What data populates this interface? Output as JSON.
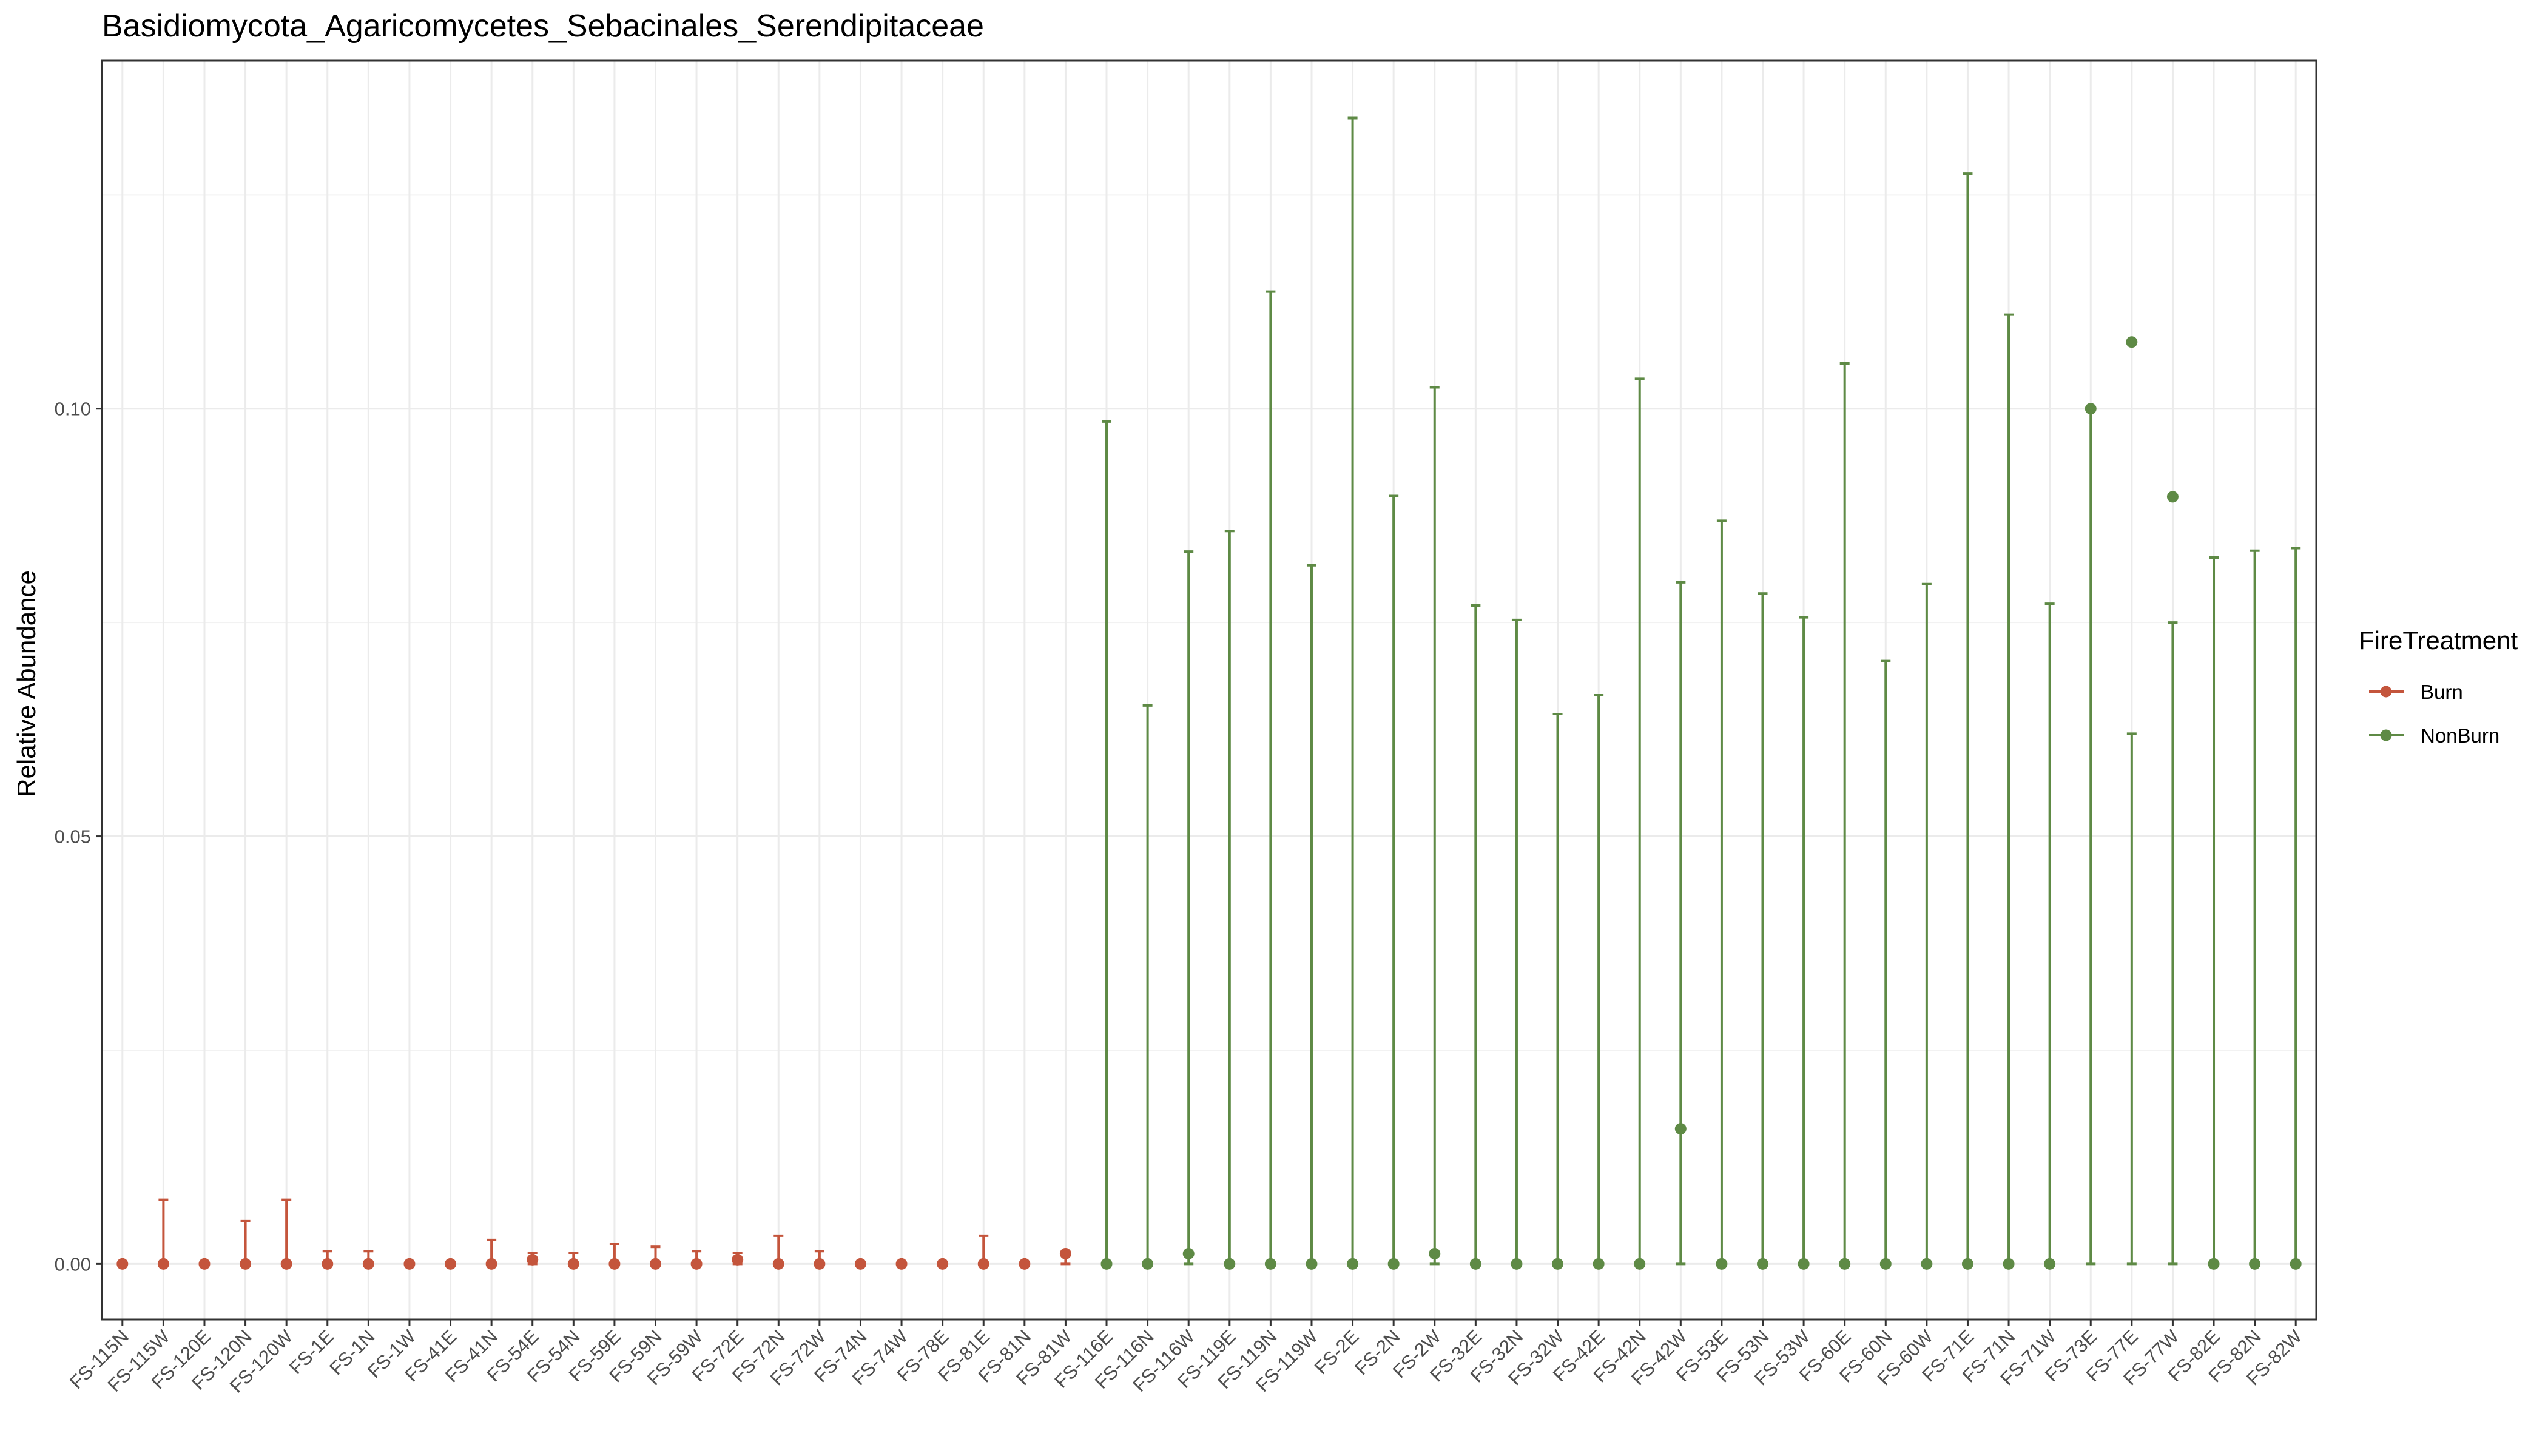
{
  "chart_data": {
    "type": "scatter",
    "title": "Basidiomycota_Agaricomycetes_Sebacinales_Serendipitaceae",
    "xlabel": "",
    "ylabel": "Relative Abundance",
    "ylim": [
      -0.0065,
      0.1407
    ],
    "yticks": [
      0.0,
      0.05,
      0.1
    ],
    "ytick_labels": [
      "0.00",
      "0.05",
      "0.10"
    ],
    "grid": true,
    "legend_position": "right",
    "legend_title": "FireTreatment",
    "series": [
      {
        "name": "Burn",
        "color": "#C4553C"
      },
      {
        "name": "NonBurn",
        "color": "#5E8A45"
      }
    ],
    "categories": [
      "FS-115N",
      "FS-115W",
      "FS-120E",
      "FS-120N",
      "FS-120W",
      "FS-1E",
      "FS-1N",
      "FS-1W",
      "FS-41E",
      "FS-41N",
      "FS-54E",
      "FS-54N",
      "FS-59E",
      "FS-59N",
      "FS-59W",
      "FS-72E",
      "FS-72N",
      "FS-72W",
      "FS-74N",
      "FS-74W",
      "FS-78E",
      "FS-81E",
      "FS-81N",
      "FS-81W",
      "FS-116E",
      "FS-116N",
      "FS-116W",
      "FS-119E",
      "FS-119N",
      "FS-119W",
      "FS-2E",
      "FS-2N",
      "FS-2W",
      "FS-32E",
      "FS-32N",
      "FS-32W",
      "FS-42E",
      "FS-42N",
      "FS-42W",
      "FS-53E",
      "FS-53N",
      "FS-53W",
      "FS-60E",
      "FS-60N",
      "FS-60W",
      "FS-71E",
      "FS-71N",
      "FS-71W",
      "FS-73E",
      "FS-77E",
      "FS-77W",
      "FS-82E",
      "FS-82N",
      "FS-82W"
    ],
    "points": [
      {
        "x": "FS-115N",
        "group": "Burn",
        "y": 0.0,
        "ymin": 0.0,
        "ymax": 0.0
      },
      {
        "x": "FS-115W",
        "group": "Burn",
        "y": 0.0,
        "ymin": 0.0,
        "ymax": 0.0075
      },
      {
        "x": "FS-120E",
        "group": "Burn",
        "y": 0.0,
        "ymin": 0.0,
        "ymax": 0.0
      },
      {
        "x": "FS-120N",
        "group": "Burn",
        "y": 0.0,
        "ymin": 0.0,
        "ymax": 0.005
      },
      {
        "x": "FS-120W",
        "group": "Burn",
        "y": 0.0,
        "ymin": 0.0,
        "ymax": 0.0075
      },
      {
        "x": "FS-1E",
        "group": "Burn",
        "y": 0.0,
        "ymin": 0.0,
        "ymax": 0.0015
      },
      {
        "x": "FS-1N",
        "group": "Burn",
        "y": 0.0,
        "ymin": 0.0,
        "ymax": 0.0015
      },
      {
        "x": "FS-1W",
        "group": "Burn",
        "y": 0.0,
        "ymin": 0.0,
        "ymax": 0.0
      },
      {
        "x": "FS-41E",
        "group": "Burn",
        "y": 0.0,
        "ymin": 0.0,
        "ymax": 0.0
      },
      {
        "x": "FS-41N",
        "group": "Burn",
        "y": 0.0,
        "ymin": 0.0,
        "ymax": 0.0028
      },
      {
        "x": "FS-54E",
        "group": "Burn",
        "y": 0.0005,
        "ymin": 0.0,
        "ymax": 0.0013
      },
      {
        "x": "FS-54N",
        "group": "Burn",
        "y": 0.0,
        "ymin": 0.0,
        "ymax": 0.0013
      },
      {
        "x": "FS-59E",
        "group": "Burn",
        "y": 0.0,
        "ymin": 0.0,
        "ymax": 0.0023
      },
      {
        "x": "FS-59N",
        "group": "Burn",
        "y": 0.0,
        "ymin": 0.0,
        "ymax": 0.002
      },
      {
        "x": "FS-59W",
        "group": "Burn",
        "y": 0.0,
        "ymin": 0.0,
        "ymax": 0.0015
      },
      {
        "x": "FS-72E",
        "group": "Burn",
        "y": 0.0005,
        "ymin": 0.0,
        "ymax": 0.0013
      },
      {
        "x": "FS-72N",
        "group": "Burn",
        "y": 0.0,
        "ymin": 0.0,
        "ymax": 0.0033
      },
      {
        "x": "FS-72W",
        "group": "Burn",
        "y": 0.0,
        "ymin": 0.0,
        "ymax": 0.0015
      },
      {
        "x": "FS-74N",
        "group": "Burn",
        "y": 0.0,
        "ymin": 0.0,
        "ymax": 0.0
      },
      {
        "x": "FS-74W",
        "group": "Burn",
        "y": 0.0,
        "ymin": 0.0,
        "ymax": 0.0
      },
      {
        "x": "FS-78E",
        "group": "Burn",
        "y": 0.0,
        "ymin": 0.0,
        "ymax": 0.0
      },
      {
        "x": "FS-81E",
        "group": "Burn",
        "y": 0.0,
        "ymin": 0.0,
        "ymax": 0.0033
      },
      {
        "x": "FS-81N",
        "group": "Burn",
        "y": 0.0,
        "ymin": 0.0,
        "ymax": 0.0
      },
      {
        "x": "FS-81W",
        "group": "Burn",
        "y": 0.0012,
        "ymin": 0.0,
        "ymax": 0.0015
      },
      {
        "x": "FS-116E",
        "group": "NonBurn",
        "y": 0.0,
        "ymin": 0.0,
        "ymax": 0.0985
      },
      {
        "x": "FS-116N",
        "group": "NonBurn",
        "y": 0.0,
        "ymin": 0.0,
        "ymax": 0.0653
      },
      {
        "x": "FS-116W",
        "group": "NonBurn",
        "y": 0.0012,
        "ymin": 0.0,
        "ymax": 0.0833
      },
      {
        "x": "FS-119E",
        "group": "NonBurn",
        "y": 0.0,
        "ymin": 0.0,
        "ymax": 0.0857
      },
      {
        "x": "FS-119N",
        "group": "NonBurn",
        "y": 0.0,
        "ymin": 0.0,
        "ymax": 0.1137
      },
      {
        "x": "FS-119W",
        "group": "NonBurn",
        "y": 0.0,
        "ymin": 0.0,
        "ymax": 0.0817
      },
      {
        "x": "FS-2E",
        "group": "NonBurn",
        "y": 0.0,
        "ymin": 0.0,
        "ymax": 0.134
      },
      {
        "x": "FS-2N",
        "group": "NonBurn",
        "y": 0.0,
        "ymin": 0.0,
        "ymax": 0.0898
      },
      {
        "x": "FS-2W",
        "group": "NonBurn",
        "y": 0.0012,
        "ymin": 0.0,
        "ymax": 0.1025
      },
      {
        "x": "FS-32E",
        "group": "NonBurn",
        "y": 0.0,
        "ymin": 0.0,
        "ymax": 0.077
      },
      {
        "x": "FS-32N",
        "group": "NonBurn",
        "y": 0.0,
        "ymin": 0.0,
        "ymax": 0.0753
      },
      {
        "x": "FS-32W",
        "group": "NonBurn",
        "y": 0.0,
        "ymin": 0.0,
        "ymax": 0.0643
      },
      {
        "x": "FS-42E",
        "group": "NonBurn",
        "y": 0.0,
        "ymin": 0.0,
        "ymax": 0.0665
      },
      {
        "x": "FS-42N",
        "group": "NonBurn",
        "y": 0.0,
        "ymin": 0.0,
        "ymax": 0.1035
      },
      {
        "x": "FS-42W",
        "group": "NonBurn",
        "y": 0.0158,
        "ymin": 0.0,
        "ymax": 0.0797
      },
      {
        "x": "FS-53E",
        "group": "NonBurn",
        "y": 0.0,
        "ymin": 0.0,
        "ymax": 0.0869
      },
      {
        "x": "FS-53N",
        "group": "NonBurn",
        "y": 0.0,
        "ymin": 0.0,
        "ymax": 0.0784
      },
      {
        "x": "FS-53W",
        "group": "NonBurn",
        "y": 0.0,
        "ymin": 0.0,
        "ymax": 0.0756
      },
      {
        "x": "FS-60E",
        "group": "NonBurn",
        "y": 0.0,
        "ymin": 0.0,
        "ymax": 0.1053
      },
      {
        "x": "FS-60N",
        "group": "NonBurn",
        "y": 0.0,
        "ymin": 0.0,
        "ymax": 0.0705
      },
      {
        "x": "FS-60W",
        "group": "NonBurn",
        "y": 0.0,
        "ymin": 0.0,
        "ymax": 0.0795
      },
      {
        "x": "FS-71E",
        "group": "NonBurn",
        "y": 0.0,
        "ymin": 0.0,
        "ymax": 0.1275
      },
      {
        "x": "FS-71N",
        "group": "NonBurn",
        "y": 0.0,
        "ymin": 0.0,
        "ymax": 0.111
      },
      {
        "x": "FS-71W",
        "group": "NonBurn",
        "y": 0.0,
        "ymin": 0.0,
        "ymax": 0.0772
      },
      {
        "x": "FS-73E",
        "group": "NonBurn",
        "y": 0.1,
        "ymin": 0.0,
        "ymax": 0.1
      },
      {
        "x": "FS-77E",
        "group": "NonBurn",
        "y": 0.1078,
        "ymin": 0.0,
        "ymax": 0.062
      },
      {
        "x": "FS-77W",
        "group": "NonBurn",
        "y": 0.0897,
        "ymin": 0.0,
        "ymax": 0.075
      },
      {
        "x": "FS-82E",
        "group": "NonBurn",
        "y": 0.0,
        "ymin": 0.0,
        "ymax": 0.0826
      },
      {
        "x": "FS-82N",
        "group": "NonBurn",
        "y": 0.0,
        "ymin": 0.0,
        "ymax": 0.0834
      },
      {
        "x": "FS-82W",
        "group": "NonBurn",
        "y": 0.0,
        "ymin": 0.0,
        "ymax": 0.0837
      }
    ]
  }
}
